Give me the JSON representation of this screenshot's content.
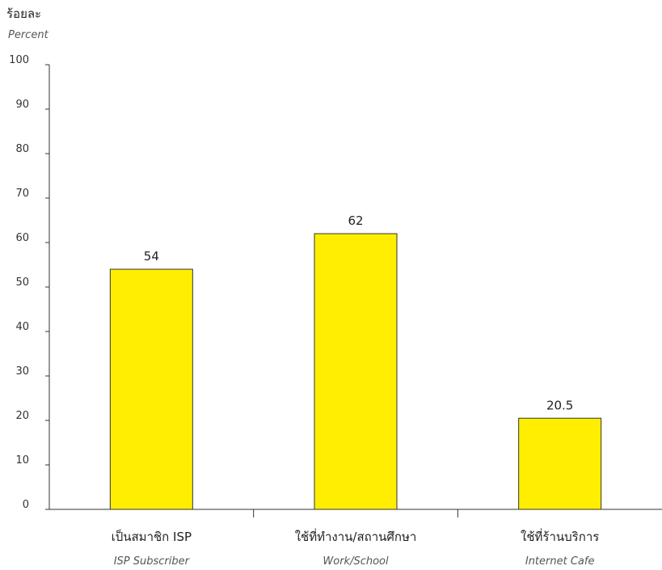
{
  "chart_data": {
    "type": "bar",
    "ylabel": "ร้อยละ",
    "ylabel_en": "Percent",
    "ylim": [
      0,
      100
    ],
    "yticks": [
      "0",
      "10",
      "20",
      "30",
      "40",
      "50",
      "60",
      "70",
      "80",
      "90",
      "100"
    ],
    "categories": [
      {
        "label": "เป็นสมาชิก ISP",
        "label_en": "ISP Subscriber"
      },
      {
        "label": "ใช้ที่ทำงาน/สถานศึกษา",
        "label_en": "Work/School"
      },
      {
        "label": "ใช้ที่ร้านบริการ",
        "label_en": "Internet Cafe"
      }
    ],
    "values": [
      54,
      62,
      20.5
    ],
    "value_labels": [
      "54",
      "62",
      "20.5"
    ],
    "grid": false,
    "legend": "none",
    "colors": {
      "bar": "#ffee00",
      "bar_stroke": "#333333",
      "axis": "#333333"
    }
  }
}
